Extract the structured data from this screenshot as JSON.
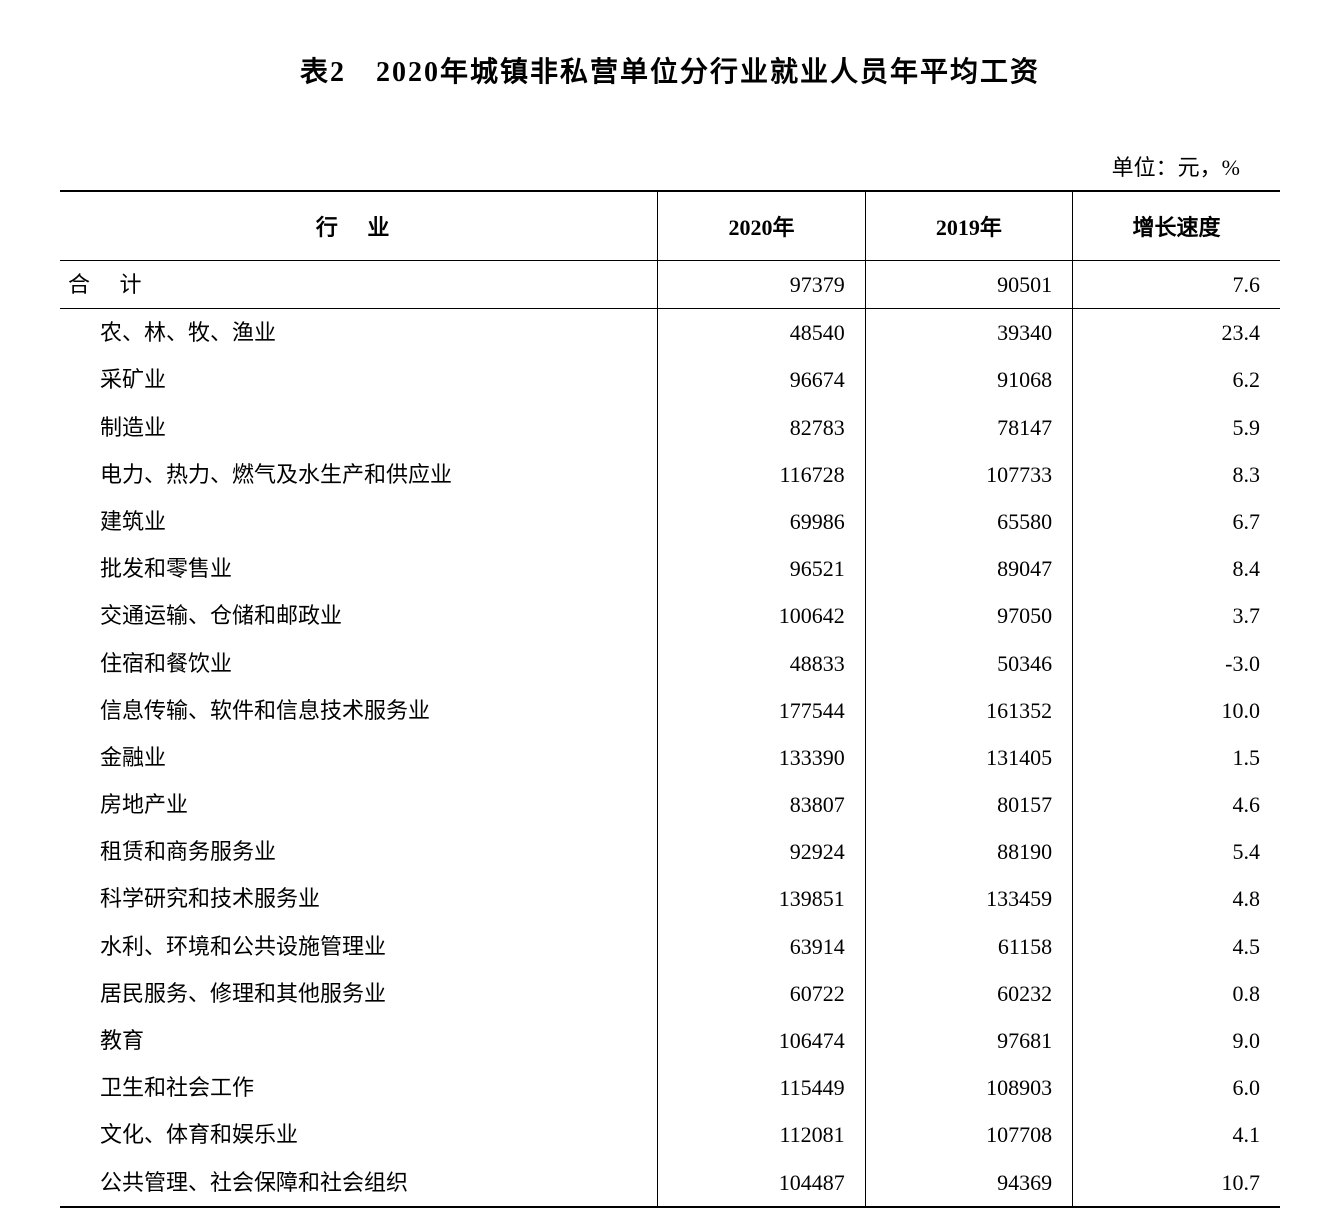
{
  "title": "表2　2020年城镇非私营单位分行业就业人员年平均工资",
  "unit_label": "单位：元，%",
  "table": {
    "columns": [
      {
        "key": "industry",
        "label": "行 业"
      },
      {
        "key": "y2020",
        "label": "2020年"
      },
      {
        "key": "y2019",
        "label": "2019年"
      },
      {
        "key": "growth",
        "label": "增长速度"
      }
    ],
    "column_widths_pct": [
      49,
      17,
      17,
      17
    ],
    "text_color": "#000000",
    "background_color": "#ffffff",
    "border_color": "#000000",
    "title_fontsize_pt": 21,
    "body_fontsize_pt": 17,
    "row_line_height": 1.6,
    "total_row": {
      "industry": "合 计",
      "y2020": "97379",
      "y2019": "90501",
      "growth": "7.6"
    },
    "rows": [
      {
        "industry": "农、林、牧、渔业",
        "y2020": "48540",
        "y2019": "39340",
        "growth": "23.4"
      },
      {
        "industry": "采矿业",
        "y2020": "96674",
        "y2019": "91068",
        "growth": "6.2"
      },
      {
        "industry": "制造业",
        "y2020": "82783",
        "y2019": "78147",
        "growth": "5.9"
      },
      {
        "industry": "电力、热力、燃气及水生产和供应业",
        "y2020": "116728",
        "y2019": "107733",
        "growth": "8.3"
      },
      {
        "industry": "建筑业",
        "y2020": "69986",
        "y2019": "65580",
        "growth": "6.7"
      },
      {
        "industry": "批发和零售业",
        "y2020": "96521",
        "y2019": "89047",
        "growth": "8.4"
      },
      {
        "industry": "交通运输、仓储和邮政业",
        "y2020": "100642",
        "y2019": "97050",
        "growth": "3.7"
      },
      {
        "industry": "住宿和餐饮业",
        "y2020": "48833",
        "y2019": "50346",
        "growth": "-3.0"
      },
      {
        "industry": "信息传输、软件和信息技术服务业",
        "y2020": "177544",
        "y2019": "161352",
        "growth": "10.0"
      },
      {
        "industry": "金融业",
        "y2020": "133390",
        "y2019": "131405",
        "growth": "1.5"
      },
      {
        "industry": "房地产业",
        "y2020": "83807",
        "y2019": "80157",
        "growth": "4.6"
      },
      {
        "industry": "租赁和商务服务业",
        "y2020": "92924",
        "y2019": "88190",
        "growth": "5.4"
      },
      {
        "industry": "科学研究和技术服务业",
        "y2020": "139851",
        "y2019": "133459",
        "growth": "4.8"
      },
      {
        "industry": "水利、环境和公共设施管理业",
        "y2020": "63914",
        "y2019": "61158",
        "growth": "4.5"
      },
      {
        "industry": "居民服务、修理和其他服务业",
        "y2020": "60722",
        "y2019": "60232",
        "growth": "0.8"
      },
      {
        "industry": "教育",
        "y2020": "106474",
        "y2019": "97681",
        "growth": "9.0"
      },
      {
        "industry": "卫生和社会工作",
        "y2020": "115449",
        "y2019": "108903",
        "growth": "6.0"
      },
      {
        "industry": "文化、体育和娱乐业",
        "y2020": "112081",
        "y2019": "107708",
        "growth": "4.1"
      },
      {
        "industry": "公共管理、社会保障和社会组织",
        "y2020": "104487",
        "y2019": "94369",
        "growth": "10.7"
      }
    ]
  }
}
